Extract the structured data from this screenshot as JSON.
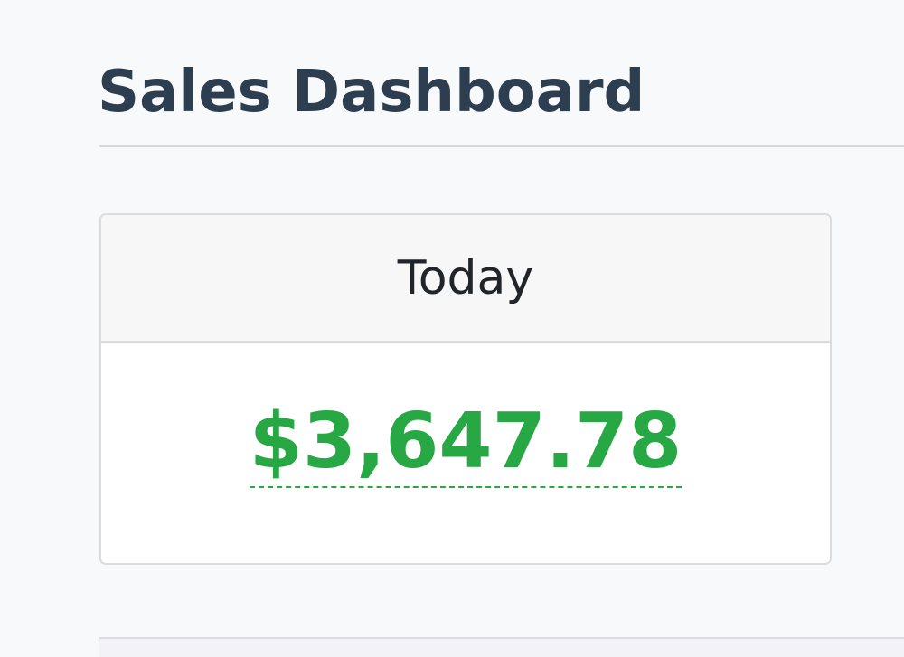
{
  "header": {
    "title": "Sales Dashboard"
  },
  "card": {
    "label": "Today",
    "value": "$3,647.78"
  }
}
